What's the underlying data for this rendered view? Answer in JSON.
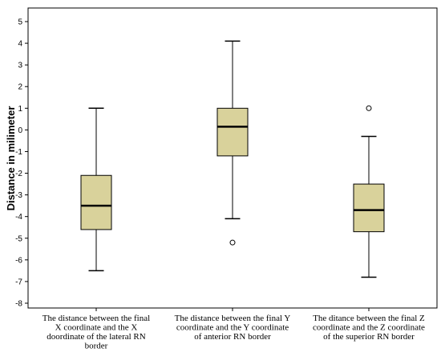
{
  "chart_data": {
    "type": "box",
    "ylabel": "Distance in milimeter",
    "xlabel": "",
    "title": "",
    "ylim": [
      -8,
      5
    ],
    "yticks": [
      5,
      4,
      3,
      2,
      1,
      0,
      -1,
      -2,
      -3,
      -4,
      -5,
      -6,
      -7,
      -8
    ],
    "grid": false,
    "box_fill": "#d9d29b",
    "box_stroke": "#000000",
    "categories": [
      {
        "label_lines": [
          "The distance between the final",
          "X coordinate and the X",
          "doordinate of the lateral RN",
          "border"
        ],
        "whisker_low": -6.5,
        "q1": -4.6,
        "median": -3.5,
        "q3": -2.1,
        "whisker_high": 1.0,
        "outliers": []
      },
      {
        "label_lines": [
          "The distance between the final Y",
          "coordinate and the Y coordinate",
          "of anterior RN border"
        ],
        "whisker_low": -4.1,
        "q1": -1.2,
        "median": 0.15,
        "q3": 1.0,
        "whisker_high": 4.1,
        "outliers": [
          -5.2
        ]
      },
      {
        "label_lines": [
          "The ditance between the final Z",
          "coordinate and the Z coordinate",
          "of the superior RN border"
        ],
        "whisker_low": -6.8,
        "q1": -4.7,
        "median": -3.7,
        "q3": -2.5,
        "whisker_high": -0.3,
        "outliers": [
          1.0
        ]
      }
    ]
  }
}
